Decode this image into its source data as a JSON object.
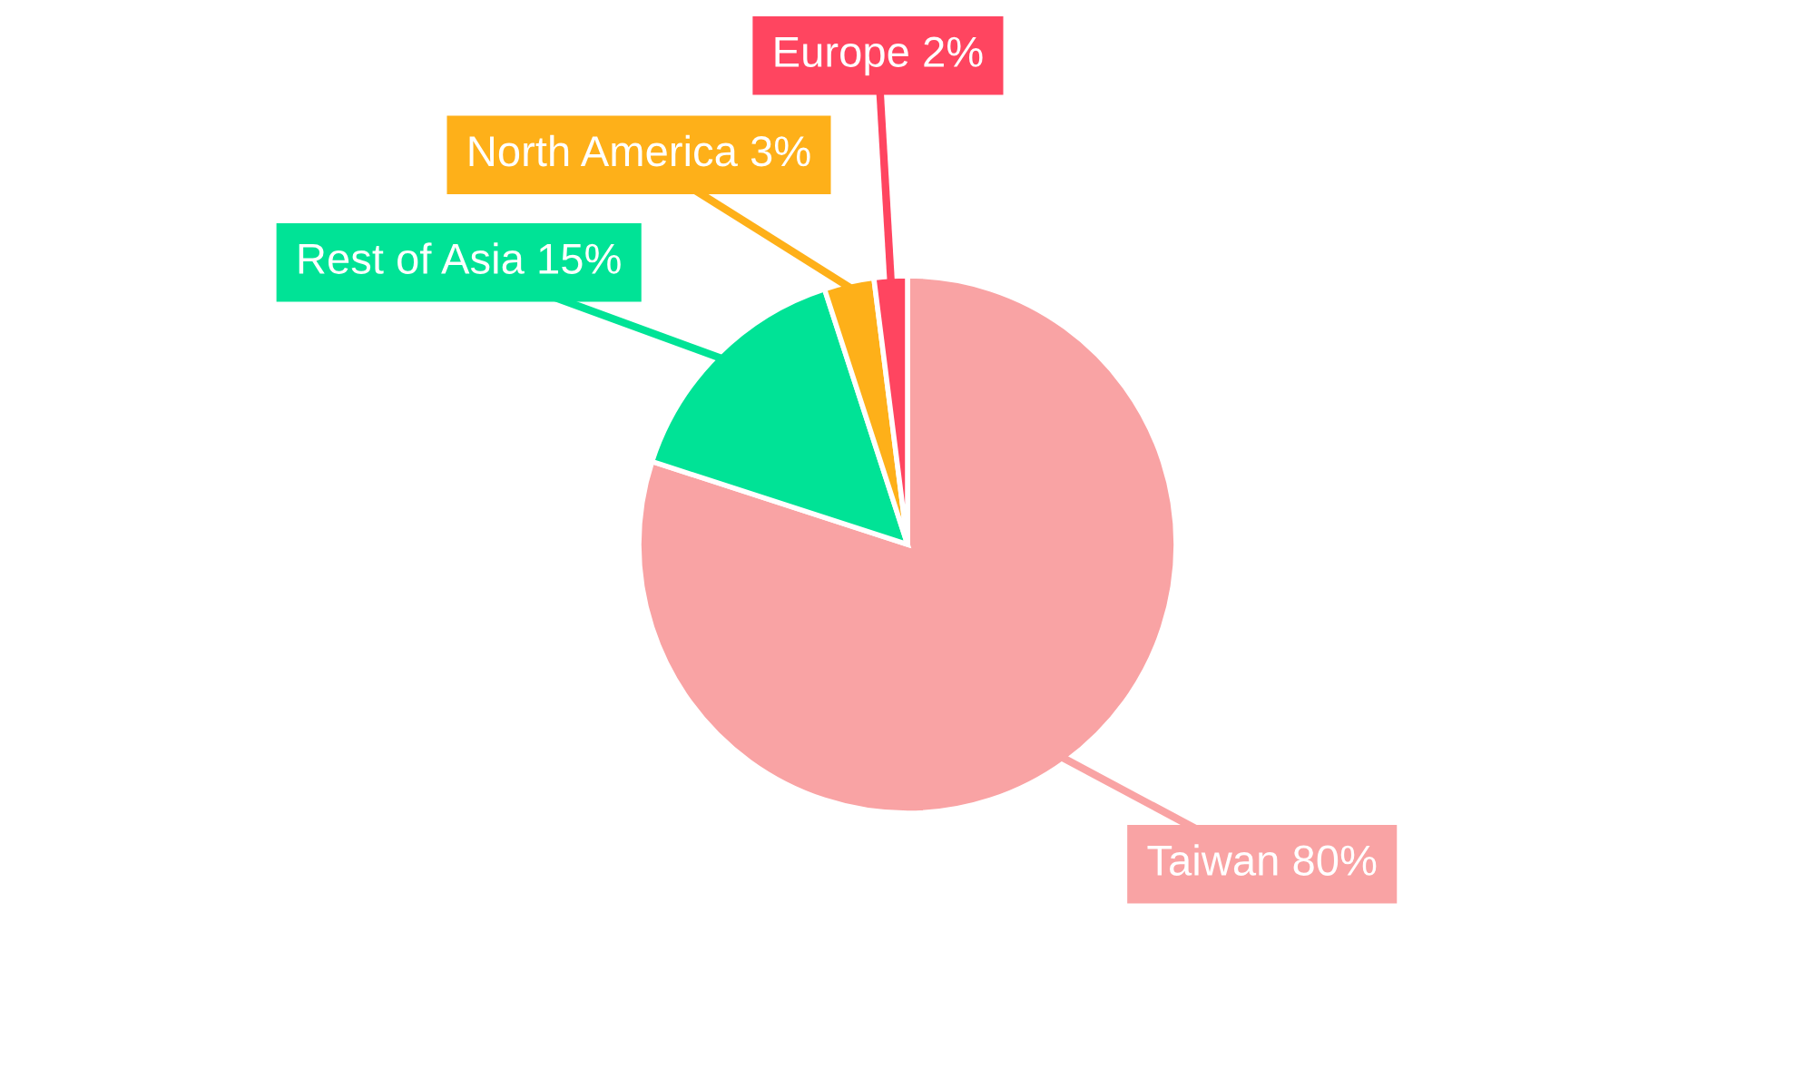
{
  "chart_data": {
    "type": "pie",
    "categories": [
      "Taiwan",
      "Rest of Asia",
      "North America",
      "Europe"
    ],
    "values": [
      80,
      15,
      3,
      2
    ],
    "value_labels": [
      "80%",
      "15%",
      "3%",
      "2%"
    ],
    "colors": [
      "#f9a3a4",
      "#00e396",
      "#feb019",
      "#ff4560"
    ]
  }
}
